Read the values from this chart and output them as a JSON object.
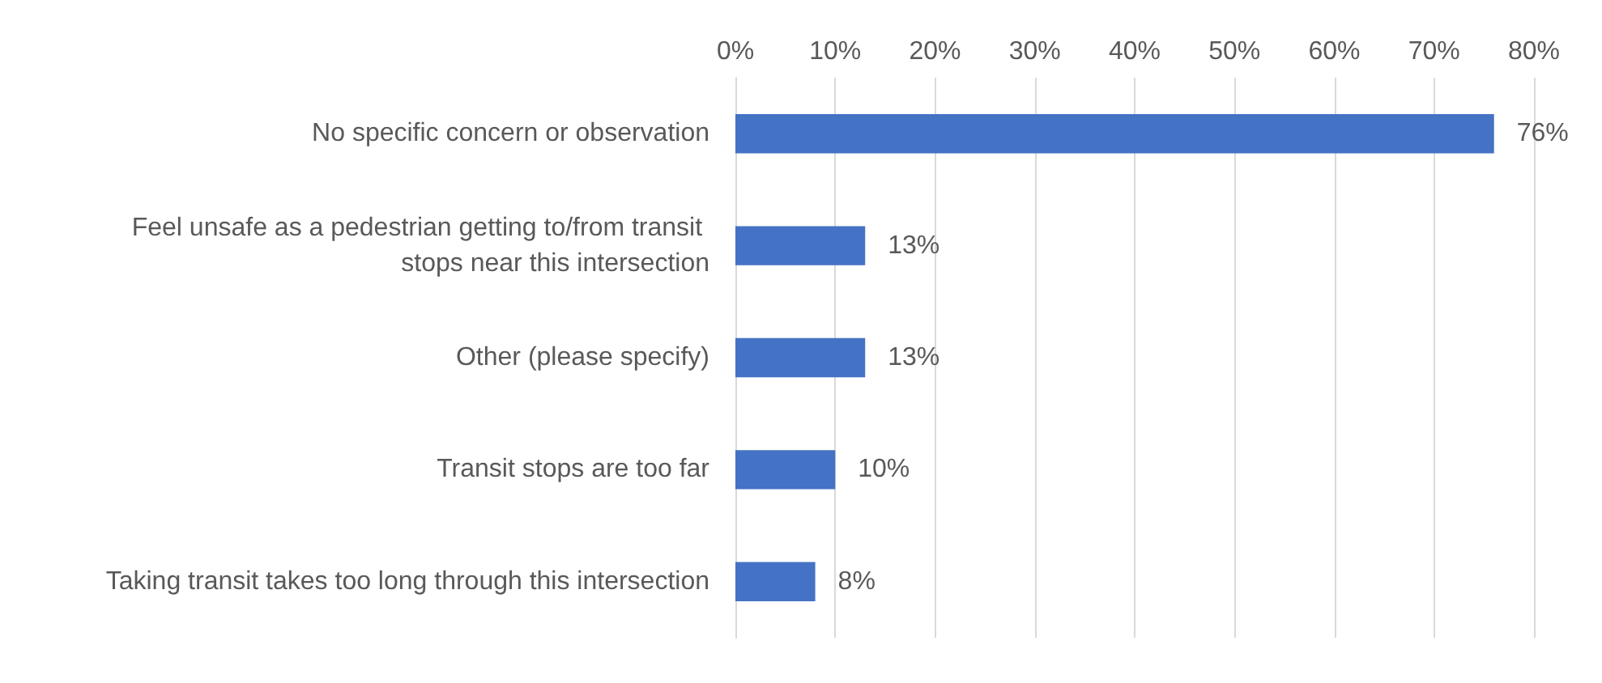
{
  "chart_data": {
    "type": "bar",
    "orientation": "horizontal",
    "categories": [
      "No specific concern or observation",
      "Feel unsafe as a pedestrian getting to/from transit stops near this intersection",
      "Other (please specify)",
      "Transit stops are too far",
      "Taking transit takes too long through this intersection"
    ],
    "values": [
      76,
      13,
      13,
      10,
      8
    ],
    "value_labels": [
      "76%",
      "13%",
      "13%",
      "10%",
      "8%"
    ],
    "color": "#4472c4",
    "xlim": [
      0,
      80
    ],
    "xticks": [
      {
        "value": 0,
        "label": "0%"
      },
      {
        "value": 10,
        "label": "10%"
      },
      {
        "value": 20,
        "label": "20%"
      },
      {
        "value": 30,
        "label": "30%"
      },
      {
        "value": 40,
        "label": "40%"
      },
      {
        "value": 50,
        "label": "50%"
      },
      {
        "value": 60,
        "label": "60%"
      },
      {
        "value": 70,
        "label": "70%"
      },
      {
        "value": 80,
        "label": "80%"
      }
    ],
    "grid": "x"
  }
}
